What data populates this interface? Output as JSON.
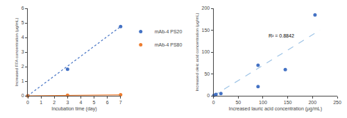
{
  "chart_data": [
    {
      "type": "scatter",
      "x_label": "Incubation time (day)",
      "y_label": "Increased FFA concentration (μg/mL)",
      "xlim": [
        0,
        7
      ],
      "ylim": [
        0,
        6
      ],
      "xticks": [
        0,
        1,
        2,
        3,
        4,
        5,
        6,
        7
      ],
      "yticks": [
        0,
        1,
        2,
        3,
        4,
        5,
        6
      ],
      "grid": false,
      "legend": "right",
      "series": [
        {
          "type": "line",
          "color": "#4472C4",
          "line_style": "dotted",
          "x": [
            0,
            7
          ],
          "values": [
            0.0,
            4.75
          ]
        },
        {
          "type": "line",
          "color": "#ED7D31",
          "line_style": "solid",
          "x": [
            0,
            7
          ],
          "values": [
            0.0,
            0.07
          ]
        },
        {
          "type": "scatter",
          "name": "mAb-4 PS20",
          "color": "#4472C4",
          "x": [
            0,
            3,
            7
          ],
          "values": [
            0.0,
            1.82,
            4.75
          ]
        },
        {
          "type": "scatter",
          "name": "mAb-4 PS80",
          "color": "#ED7D31",
          "x": [
            0,
            3,
            7
          ],
          "values": [
            0.0,
            0.04,
            0.07
          ]
        }
      ]
    },
    {
      "type": "scatter",
      "x_label": "Increased lauric acid concentration (μg/mL)",
      "y_label": "Increased oleic acid concentration (μg/mL)",
      "xlim": [
        0,
        250
      ],
      "ylim": [
        0,
        200
      ],
      "xticks": [
        0,
        50,
        100,
        150,
        200,
        250
      ],
      "yticks": [
        0,
        50,
        100,
        150,
        200
      ],
      "grid": false,
      "series": [
        {
          "type": "line",
          "color": "#9DC3E6",
          "line_style": "dashed",
          "x": [
            0,
            215
          ],
          "values": [
            0,
            150
          ]
        },
        {
          "type": "scatter",
          "color": "#4472C4",
          "x": [
            1,
            5,
            15,
            90,
            90,
            145,
            205
          ],
          "values": [
            1,
            3,
            5,
            21,
            70,
            60,
            185
          ]
        }
      ],
      "annotations": [
        {
          "text": "R² = 0.8842",
          "x": 108,
          "y": 138
        }
      ]
    }
  ]
}
